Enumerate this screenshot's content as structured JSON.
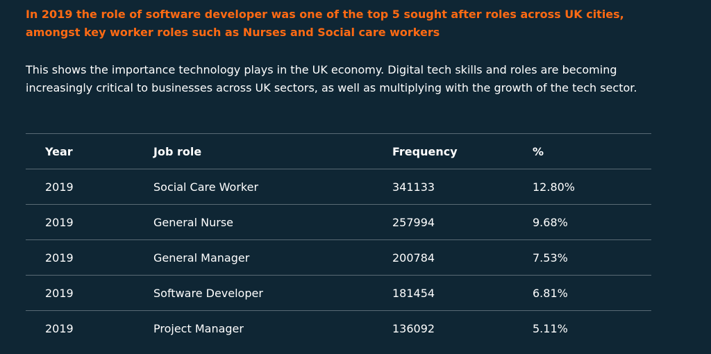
{
  "headline": "In 2019 the role of software developer was one of the top 5 sought after roles across UK cities, amongst key worker roles such as Nurses and Social care workers",
  "intro": "This shows the importance technology plays in the UK economy. Digital tech skills and roles are becoming increasingly critical to businesses across UK sectors, as well as multiplying with the growth of the tech sector.",
  "table": {
    "headers": [
      "Year",
      "Job role",
      "Frequency",
      "%"
    ],
    "rows": [
      [
        "2019",
        "Social Care Worker",
        "341133",
        "12.80%"
      ],
      [
        "2019",
        "General Nurse",
        "257994",
        "9.68%"
      ],
      [
        "2019",
        "General Manager",
        "200784",
        "7.53%"
      ],
      [
        "2019",
        "Software Developer",
        "181454",
        "6.81%"
      ],
      [
        "2019",
        "Project Manager",
        "136092",
        "5.11%"
      ]
    ]
  },
  "colors": {
    "background": "#0f2634",
    "accent": "#ff6a13",
    "text": "#ffffff",
    "divider": "#5a6b75"
  }
}
